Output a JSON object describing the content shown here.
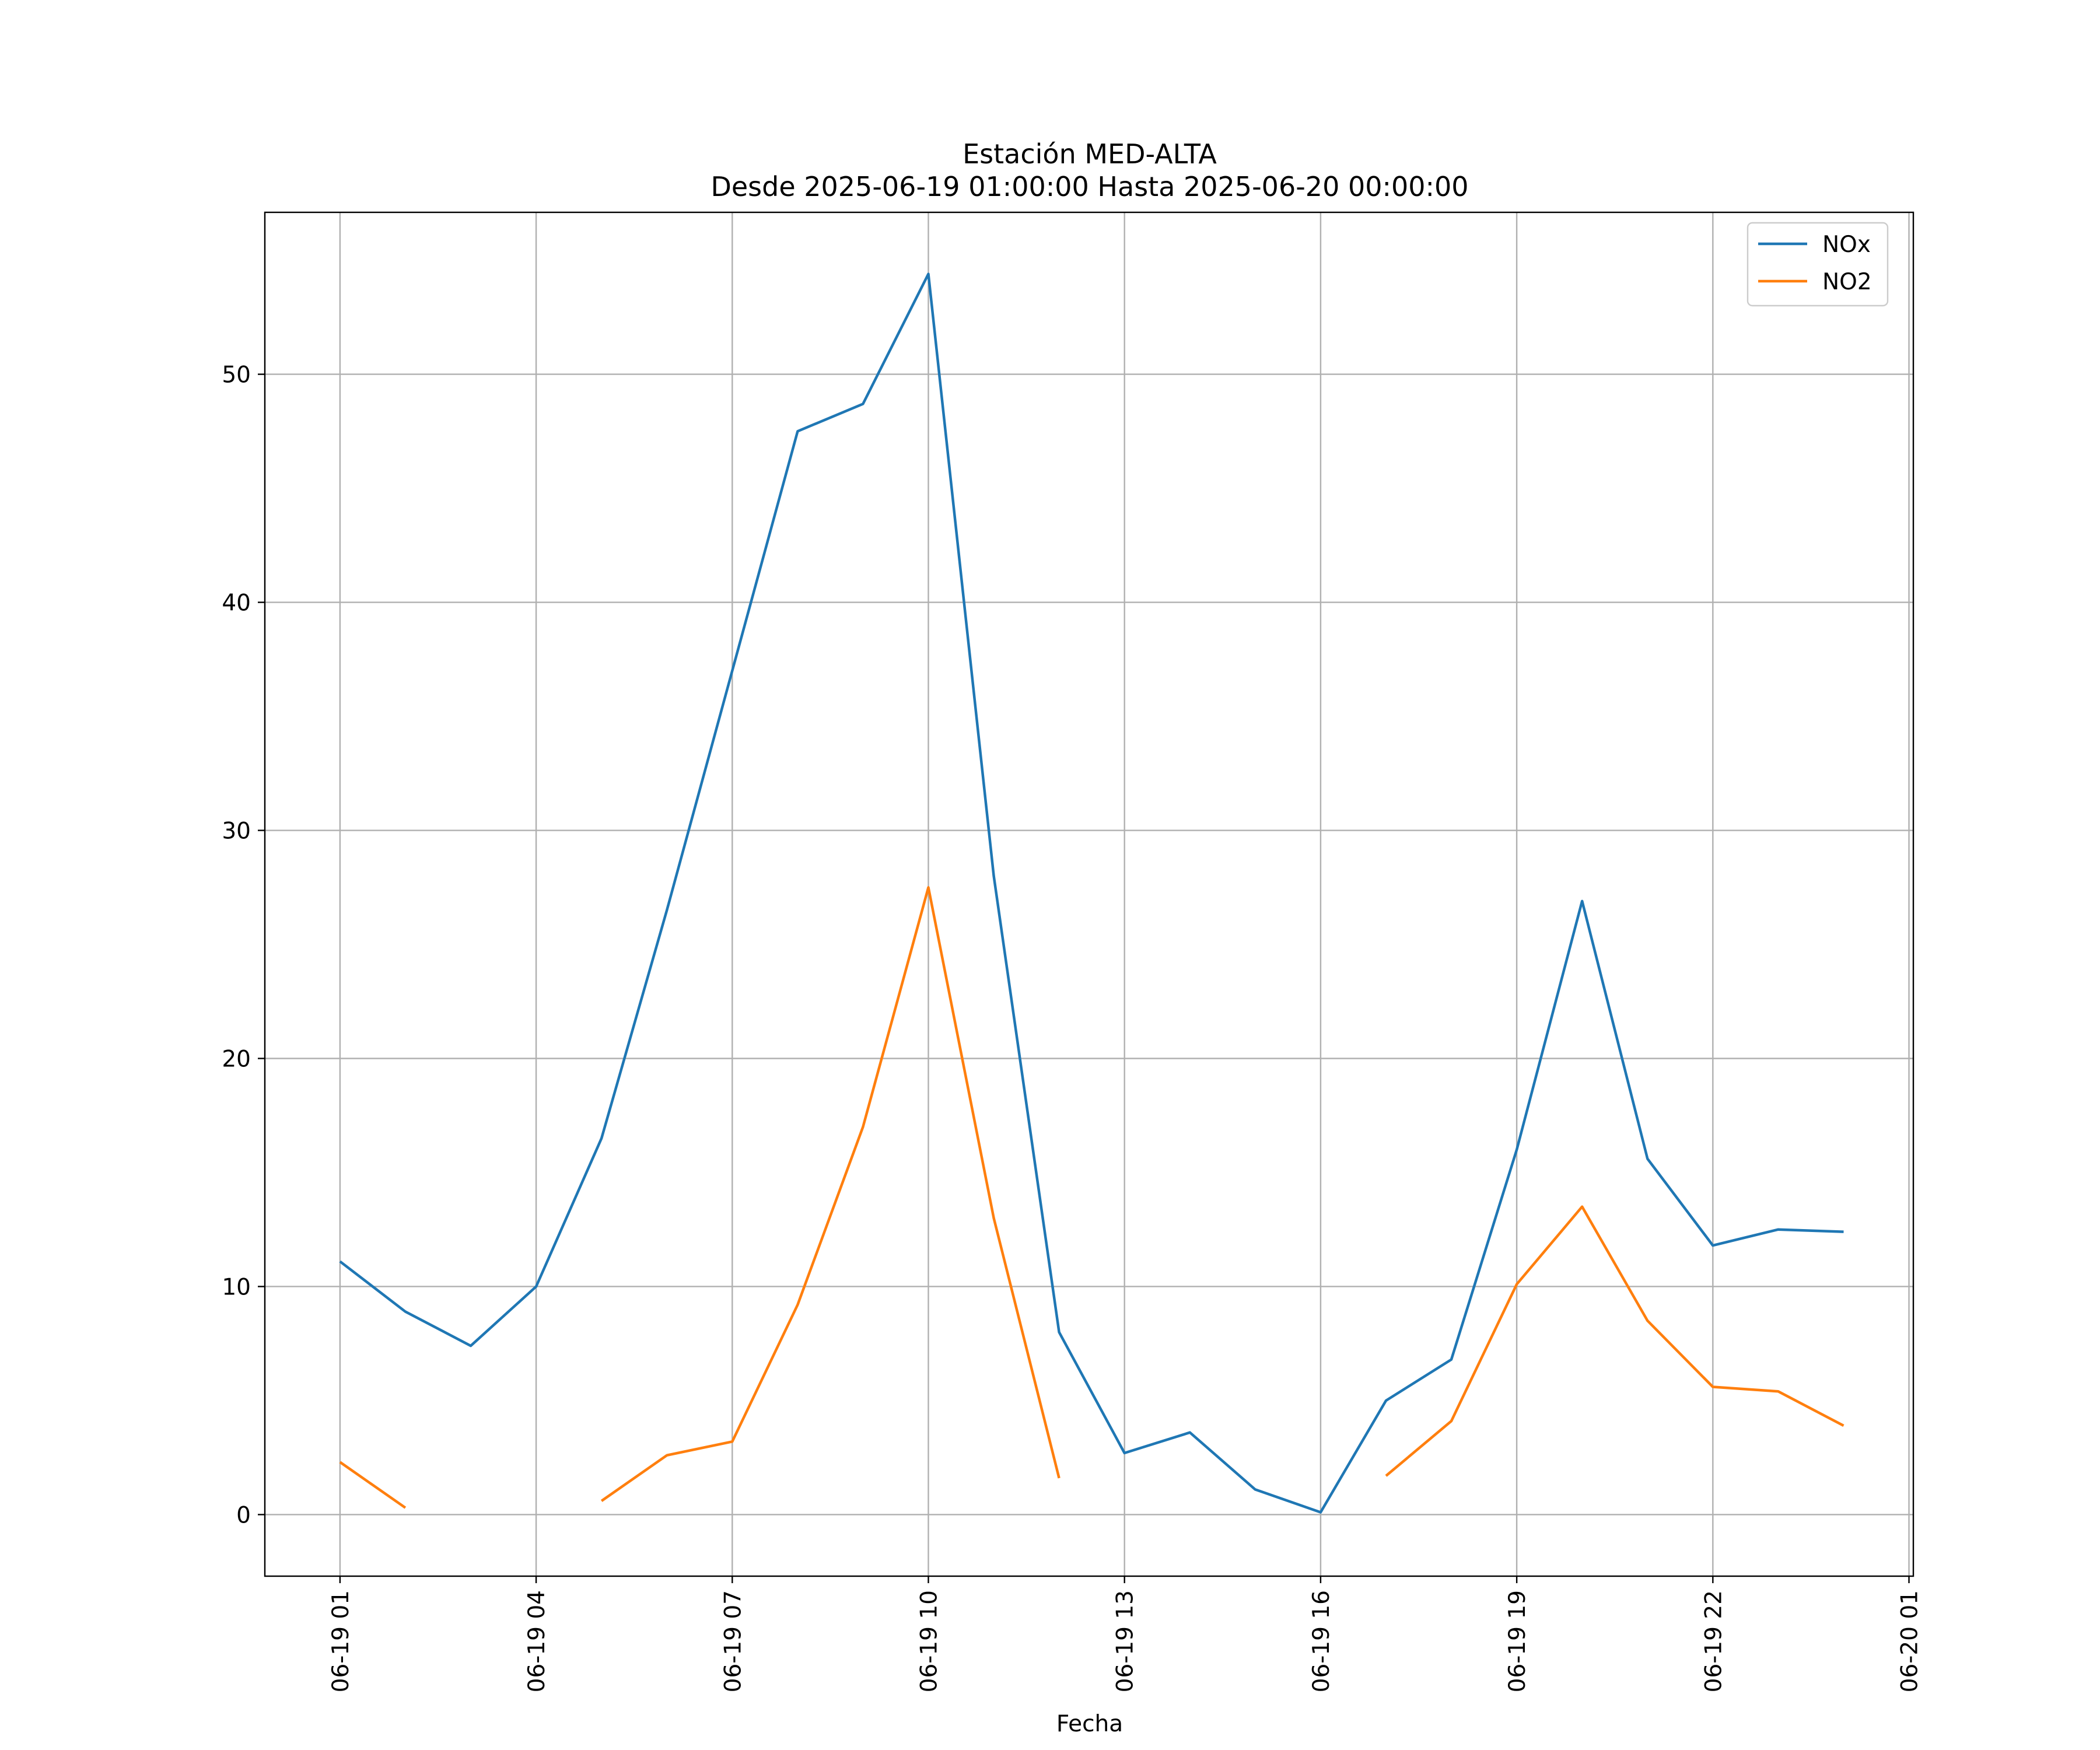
{
  "chart_data": {
    "type": "line",
    "title": "Estación MED-ALTA",
    "subtitle": "Desde 2025-06-19 01:00:00 Hasta 2025-06-20 00:00:00",
    "xlabel": "Fecha",
    "ylabel": "",
    "x": [
      "2025-06-19 01:00",
      "2025-06-19 02:00",
      "2025-06-19 03:00",
      "2025-06-19 04:00",
      "2025-06-19 05:00",
      "2025-06-19 06:00",
      "2025-06-19 07:00",
      "2025-06-19 08:00",
      "2025-06-19 09:00",
      "2025-06-19 10:00",
      "2025-06-19 11:00",
      "2025-06-19 12:00",
      "2025-06-19 13:00",
      "2025-06-19 14:00",
      "2025-06-19 15:00",
      "2025-06-19 16:00",
      "2025-06-19 17:00",
      "2025-06-19 18:00",
      "2025-06-19 19:00",
      "2025-06-19 20:00",
      "2025-06-19 21:00",
      "2025-06-19 22:00",
      "2025-06-19 23:00",
      "2025-06-20 00:00"
    ],
    "xlim": [
      "2025-06-18 23:51",
      "2025-06-20 01:04"
    ],
    "xticks": [
      "2025-06-19 01:00",
      "2025-06-19 04:00",
      "2025-06-19 07:00",
      "2025-06-19 10:00",
      "2025-06-19 13:00",
      "2025-06-19 16:00",
      "2025-06-19 19:00",
      "2025-06-19 22:00",
      "2025-06-20 01:00"
    ],
    "xtick_labels": [
      "06-19 01",
      "06-19 04",
      "06-19 07",
      "06-19 10",
      "06-19 13",
      "06-19 16",
      "06-19 19",
      "06-19 22",
      "06-20 01"
    ],
    "ylim": [
      -2.7,
      57.1
    ],
    "yticks": [
      0,
      10,
      20,
      30,
      40,
      50
    ],
    "ytick_labels": [
      "0",
      "10",
      "20",
      "30",
      "40",
      "50"
    ],
    "grid": true,
    "legend_position": "top-right",
    "series": [
      {
        "name": "NOx",
        "color": "#1f77b4",
        "values": [
          11.1,
          8.9,
          7.4,
          10.0,
          16.5,
          26.5,
          37.0,
          47.5,
          48.7,
          54.4,
          28.0,
          8.0,
          2.7,
          3.6,
          1.1,
          0.1,
          5.0,
          6.8,
          16.0,
          26.9,
          15.6,
          11.8,
          12.5,
          12.4
        ]
      },
      {
        "name": "NO2",
        "color": "#ff7f0e",
        "values": [
          2.3,
          0.3,
          null,
          null,
          0.6,
          2.6,
          3.2,
          9.2,
          17.0,
          27.5,
          13.0,
          1.6,
          null,
          null,
          null,
          null,
          1.7,
          4.1,
          10.1,
          13.5,
          8.5,
          5.6,
          5.4,
          3.9
        ]
      }
    ]
  }
}
